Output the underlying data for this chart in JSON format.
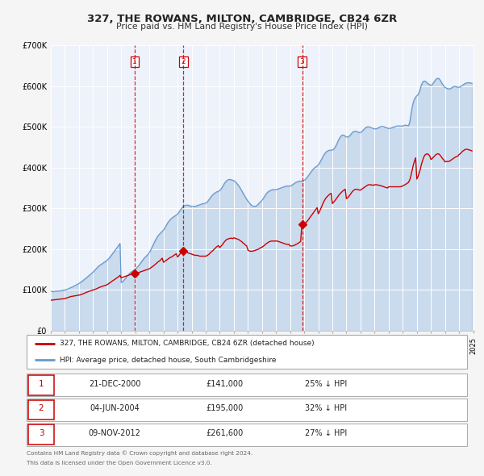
{
  "title": "327, THE ROWANS, MILTON, CAMBRIDGE, CB24 6ZR",
  "subtitle": "Price paid vs. HM Land Registry's House Price Index (HPI)",
  "legend_property": "327, THE ROWANS, MILTON, CAMBRIDGE, CB24 6ZR (detached house)",
  "legend_hpi": "HPI: Average price, detached house, South Cambridgeshire",
  "footnote1": "Contains HM Land Registry data © Crown copyright and database right 2024.",
  "footnote2": "This data is licensed under the Open Government Licence v3.0.",
  "property_color": "#cc0000",
  "hpi_color": "#6699cc",
  "plot_bg_color": "#eef2fa",
  "ylim": [
    0,
    700000
  ],
  "ytick_labels": [
    "£0",
    "£100K",
    "£200K",
    "£300K",
    "£400K",
    "£500K",
    "£600K",
    "£700K"
  ],
  "ytick_values": [
    0,
    100000,
    200000,
    300000,
    400000,
    500000,
    600000,
    700000
  ],
  "sales": [
    {
      "num": 1,
      "date": "2000-12-21",
      "price": 141000,
      "pct": "25%",
      "label": "21-DEC-2000",
      "price_label": "£141,000"
    },
    {
      "num": 2,
      "date": "2004-06-04",
      "price": 195000,
      "pct": "32%",
      "label": "04-JUN-2004",
      "price_label": "£195,000"
    },
    {
      "num": 3,
      "date": "2012-11-09",
      "price": 261600,
      "pct": "27%",
      "label": "09-NOV-2012",
      "price_label": "£261,600"
    }
  ],
  "hpi_values": [
    97000,
    96500,
    96000,
    96500,
    97000,
    97500,
    97000,
    97500,
    98000,
    98500,
    99000,
    99500,
    100000,
    101000,
    102000,
    103000,
    104500,
    106000,
    107000,
    108500,
    110000,
    111500,
    113000,
    114500,
    116000,
    118000,
    120000,
    122000,
    124500,
    127000,
    129000,
    131500,
    134000,
    136500,
    139000,
    141500,
    144000,
    147000,
    150000,
    153000,
    156000,
    159000,
    161000,
    163000,
    165000,
    167000,
    169000,
    171000,
    173000,
    176000,
    179000,
    182500,
    186500,
    190500,
    194000,
    198000,
    202000,
    206000,
    210000,
    214000,
    118000,
    120000,
    123000,
    126000,
    130000,
    134000,
    137000,
    140000,
    143000,
    145000,
    147000,
    149000,
    151000,
    154000,
    157000,
    160000,
    164000,
    168000,
    172000,
    176000,
    179000,
    182000,
    185000,
    188000,
    192000,
    197000,
    203000,
    209000,
    215000,
    221000,
    226000,
    231000,
    235000,
    238000,
    241000,
    244000,
    247000,
    251000,
    256000,
    261000,
    266000,
    270000,
    273000,
    276000,
    278000,
    280000,
    282000,
    284000,
    286000,
    290000,
    294000,
    298000,
    302000,
    305000,
    307000,
    308000,
    308000,
    308000,
    307000,
    306000,
    305000,
    305000,
    305000,
    305000,
    306000,
    307000,
    308000,
    309000,
    310000,
    311000,
    312000,
    312000,
    313000,
    315000,
    318000,
    322000,
    326000,
    330000,
    333000,
    336000,
    338000,
    340000,
    341000,
    342000,
    344000,
    347000,
    351000,
    356000,
    361000,
    365000,
    368000,
    370000,
    371000,
    371000,
    370000,
    369000,
    368000,
    366000,
    363000,
    360000,
    356000,
    352000,
    347000,
    342000,
    337000,
    332000,
    327000,
    322000,
    318000,
    314000,
    311000,
    308000,
    306000,
    305000,
    305000,
    306000,
    308000,
    311000,
    314000,
    317000,
    320000,
    324000,
    328000,
    333000,
    337000,
    340000,
    342000,
    344000,
    345000,
    346000,
    346000,
    346000,
    346000,
    347000,
    348000,
    349000,
    350000,
    351000,
    352000,
    353000,
    354000,
    355000,
    355000,
    355000,
    355000,
    356000,
    358000,
    360000,
    362000,
    364000,
    365000,
    366000,
    367000,
    367000,
    367000,
    368000,
    369000,
    371000,
    374000,
    378000,
    382000,
    386000,
    390000,
    394000,
    397000,
    400000,
    402000,
    404000,
    407000,
    411000,
    416000,
    421000,
    427000,
    432000,
    436000,
    439000,
    441000,
    442000,
    443000,
    443000,
    443000,
    445000,
    448000,
    453000,
    459000,
    466000,
    471000,
    476000,
    479000,
    480000,
    479000,
    477000,
    475000,
    475000,
    476000,
    479000,
    482000,
    486000,
    488000,
    489000,
    489000,
    488000,
    487000,
    486000,
    486000,
    488000,
    491000,
    494000,
    497000,
    499000,
    500000,
    500000,
    499000,
    498000,
    497000,
    496000,
    495000,
    495000,
    496000,
    497000,
    499000,
    500000,
    501000,
    501000,
    500000,
    499000,
    498000,
    497000,
    496000,
    496000,
    497000,
    498000,
    499000,
    500000,
    501000,
    502000,
    502000,
    502000,
    502000,
    502000,
    502000,
    503000,
    504000,
    504000,
    503000,
    503000,
    512000,
    530000,
    548000,
    560000,
    568000,
    573000,
    576000,
    579000,
    584000,
    594000,
    603000,
    609000,
    612000,
    612000,
    610000,
    607000,
    605000,
    603000,
    602000,
    603000,
    607000,
    611000,
    615000,
    618000,
    619000,
    618000,
    614000,
    609000,
    604000,
    600000,
    597000,
    595000,
    594000,
    593000,
    593000,
    594000,
    596000,
    598000,
    599000,
    599000,
    598000,
    597000,
    597000,
    598000,
    600000,
    602000,
    604000,
    606000,
    607000,
    608000,
    608000,
    608000,
    607000,
    607000
  ],
  "prop_values": [
    75000,
    75300,
    75600,
    76000,
    76400,
    76800,
    77000,
    77300,
    77600,
    78000,
    78300,
    78600,
    79000,
    80000,
    81000,
    82000,
    83000,
    84000,
    84500,
    85000,
    85500,
    86000,
    86500,
    87000,
    87500,
    88000,
    89000,
    90000,
    91000,
    92500,
    94000,
    95000,
    96000,
    97000,
    98000,
    99000,
    100000,
    101000,
    102000,
    103000,
    104500,
    106000,
    107000,
    108000,
    109000,
    110000,
    111000,
    112000,
    113000,
    115000,
    117000,
    119000,
    121000,
    123000,
    125000,
    127000,
    129000,
    131000,
    133000,
    136000,
    130000,
    131000,
    132000,
    133000,
    134000,
    135000,
    136000,
    137000,
    138000,
    139000,
    140000,
    141000,
    141000,
    141500,
    142000,
    143000,
    144000,
    145000,
    146000,
    147000,
    148000,
    149000,
    150000,
    151000,
    152000,
    154000,
    156000,
    158000,
    160000,
    163000,
    165000,
    168000,
    170000,
    172000,
    175000,
    178000,
    168000,
    170000,
    172000,
    174000,
    176000,
    178000,
    180000,
    181000,
    183000,
    185000,
    187000,
    189000,
    181000,
    184000,
    188000,
    192000,
    195000,
    195000,
    195000,
    194000,
    193000,
    191000,
    190000,
    189000,
    188000,
    187000,
    186000,
    185000,
    185000,
    185000,
    184000,
    183000,
    183000,
    183000,
    183000,
    183000,
    183000,
    184000,
    186000,
    188000,
    191000,
    194000,
    196000,
    199000,
    202000,
    205000,
    207000,
    209000,
    204000,
    207000,
    210000,
    214000,
    218000,
    221000,
    224000,
    225000,
    226000,
    227000,
    227000,
    226000,
    228000,
    227000,
    226000,
    225000,
    224000,
    222000,
    220000,
    218000,
    215000,
    213000,
    210000,
    208000,
    198000,
    196000,
    195000,
    195000,
    195000,
    196000,
    197000,
    198000,
    199000,
    200000,
    202000,
    204000,
    205000,
    207000,
    209000,
    212000,
    214000,
    216000,
    218000,
    219000,
    220000,
    220000,
    220000,
    220000,
    220000,
    220000,
    219000,
    218000,
    217000,
    216000,
    215000,
    214000,
    213000,
    212000,
    212000,
    212000,
    208000,
    208000,
    208000,
    209000,
    210000,
    212000,
    213000,
    215000,
    217000,
    219000,
    261600,
    270000,
    262000,
    264000,
    267000,
    270000,
    274000,
    278000,
    282000,
    286000,
    290000,
    294000,
    298000,
    302000,
    287000,
    292000,
    298000,
    305000,
    312000,
    318000,
    323000,
    327000,
    330000,
    333000,
    335000,
    337000,
    312000,
    315000,
    318000,
    322000,
    326000,
    330000,
    334000,
    337000,
    340000,
    343000,
    345000,
    347000,
    324000,
    326000,
    329000,
    333000,
    337000,
    341000,
    344000,
    346000,
    347000,
    347000,
    346000,
    345000,
    345000,
    347000,
    349000,
    351000,
    353000,
    355000,
    357000,
    358000,
    358000,
    358000,
    357000,
    357000,
    358000,
    358000,
    358000,
    357000,
    357000,
    356000,
    355000,
    354000,
    353000,
    352000,
    351000,
    350000,
    353000,
    353000,
    353000,
    353000,
    353000,
    353000,
    353000,
    353000,
    353000,
    353000,
    353000,
    354000,
    355000,
    357000,
    358000,
    360000,
    362000,
    364000,
    370000,
    380000,
    393000,
    406000,
    416000,
    424000,
    372000,
    378000,
    386000,
    396000,
    408000,
    418000,
    426000,
    431000,
    433000,
    434000,
    432000,
    429000,
    420000,
    422000,
    425000,
    428000,
    431000,
    433000,
    434000,
    433000,
    430000,
    426000,
    422000,
    419000,
    414000,
    415000,
    415000,
    415000,
    416000,
    418000,
    420000,
    422000,
    424000,
    426000,
    427000,
    428000,
    432000,
    434000,
    437000,
    440000,
    442000,
    444000,
    445000,
    445000,
    444000,
    443000,
    442000,
    441000
  ]
}
